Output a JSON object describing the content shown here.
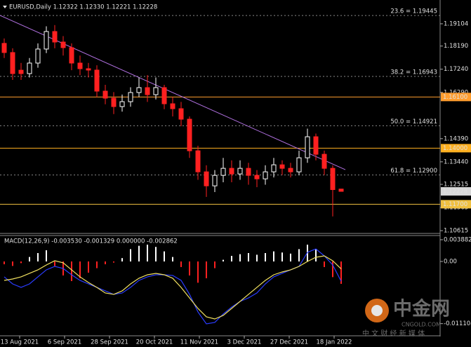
{
  "chart_data": {
    "type": "candlestick",
    "title": "EURUSD,Daily  1.12322 1.12330 1.12221 1.12228",
    "up_color": "#ffffff",
    "down_color": "#ff2020",
    "open": [
      1.183,
      1.17924,
      1.172,
      1.1706,
      1.17492,
      1.18068,
      1.18787,
      1.18355,
      1.18125,
      1.17492,
      1.17261,
      1.17204,
      1.1634,
      1.16052,
      1.15707,
      1.15908,
      1.16283,
      1.16484,
      1.16196,
      1.16484,
      1.15822,
      1.1562,
      1.15189,
      1.13893,
      1.13029,
      1.12454,
      1.12885,
      1.13173,
      1.12943,
      1.13173,
      1.12885,
      1.12741,
      1.13029,
      1.13317,
      1.13173,
      1.13029,
      1.13605,
      1.14469,
      1.13749,
      1.13173,
      1.12322
    ],
    "high": [
      1.185,
      1.181,
      1.175,
      1.177,
      1.183,
      1.19,
      1.1905,
      1.186,
      1.183,
      1.178,
      1.175,
      1.174,
      1.166,
      1.163,
      1.162,
      1.165,
      1.169,
      1.17,
      1.169,
      1.166,
      1.161,
      1.159,
      1.153,
      1.141,
      1.133,
      1.131,
      1.136,
      1.135,
      1.135,
      1.134,
      1.131,
      1.133,
      1.136,
      1.135,
      1.134,
      1.139,
      1.148,
      1.146,
      1.139,
      1.133,
      1.1233
    ],
    "low": [
      1.177,
      1.168,
      1.168,
      1.169,
      1.173,
      1.179,
      1.181,
      1.178,
      1.172,
      1.17,
      1.169,
      1.161,
      1.158,
      1.154,
      1.155,
      1.157,
      1.161,
      1.159,
      1.16,
      1.156,
      1.153,
      1.149,
      1.136,
      1.127,
      1.12,
      1.122,
      1.126,
      1.126,
      1.127,
      1.125,
      1.124,
      1.125,
      1.128,
      1.129,
      1.128,
      1.129,
      1.134,
      1.135,
      1.129,
      1.112,
      1.12221
    ],
    "close": [
      1.17924,
      1.1706,
      1.1706,
      1.17492,
      1.18068,
      1.18787,
      1.18355,
      1.18125,
      1.17492,
      1.17261,
      1.17204,
      1.1634,
      1.16052,
      1.15707,
      1.15908,
      1.16283,
      1.16484,
      1.16196,
      1.16484,
      1.15822,
      1.1562,
      1.15189,
      1.13893,
      1.13029,
      1.12454,
      1.12885,
      1.13173,
      1.12943,
      1.13173,
      1.12885,
      1.12741,
      1.13029,
      1.13317,
      1.13173,
      1.13029,
      1.13605,
      1.14469,
      1.13749,
      1.13173,
      1.123,
      1.12228
    ],
    "ylim": [
      1.1053,
      1.2008
    ],
    "yticks": [
      1.19104,
      {
        "value": 1.1819,
        "label": "1.18190"
      },
      {
        "value": 1.1724,
        "label": "1.17240"
      },
      {
        "value": 1.1629,
        "label": "1.16290"
      },
      {
        "value": 1.1439,
        "label": "1.14390"
      },
      {
        "value": 1.1344,
        "label": "1.13440"
      },
      1.12515,
      1.11565,
      1.10615
    ],
    "x_labels": [
      "13 Aug 2021",
      "6 Sep 2021",
      "28 Sep 2021",
      "20 Oct 2021",
      "11 Nov 2021",
      "3 Dec 2021",
      "27 Dec 2021",
      "18 Jan 2022"
    ],
    "fib_levels": [
      {
        "value": 1.19445,
        "label": "23.6 = 1.19445"
      },
      {
        "value": 1.16943,
        "label": "38.2 = 1.16943"
      },
      {
        "value": 1.14921,
        "label": "50.0 = 1.14921"
      },
      {
        "value": 1.129,
        "label": "61.8 = 1.12900"
      }
    ],
    "levels": [
      {
        "value": 1.161,
        "label": "1.16100",
        "color": "#ff9d2e"
      },
      {
        "value": 1.14,
        "label": "1.14000",
        "color": "#ffb020"
      },
      {
        "value": 1.117,
        "label": "1.11700",
        "color": "#f0c040"
      }
    ],
    "current_price": {
      "value": 1.12228,
      "label": "1.12228"
    },
    "trendline": {
      "from": 1.19449,
      "to": 1.13116,
      "color": "#b070e0"
    },
    "macd": {
      "title": "MACD(12,26,9) -0.003530 -0.001329 0.000000 -0.002862",
      "ylim": [
        -0.01315,
        0.00463
      ],
      "yticks": [
        0.003882,
        {
          "value": 0,
          "label": "0.00"
        },
        -0.011104
      ],
      "histogram": [
        -0.0005,
        -0.0008,
        -0.0003,
        0.0008,
        0.0015,
        0.002,
        -0.0008,
        -0.0025,
        -0.0035,
        -0.003,
        -0.002,
        -0.0012,
        -0.0005,
        -0.0002,
        0.0006,
        0.0022,
        0.0028,
        0.003,
        0.0026,
        0.0018,
        0.0008,
        -0.001,
        -0.0025,
        -0.0038,
        -0.003,
        -0.0012,
        0.0003,
        0.001,
        0.0013,
        0.0015,
        0.0012,
        0.0015,
        0.0018,
        0.0016,
        0.0014,
        0.0022,
        0.003,
        0.0022,
        -0.001,
        -0.0028,
        -0.004
      ],
      "main": {
        "color": "#2a3cff",
        "values": [
          -0.00275,
          -0.00401,
          -0.00463,
          -0.00401,
          -0.00275,
          -0.0015,
          -0.00088,
          -0.00125,
          -0.00238,
          -0.00338,
          -0.00401,
          -0.00463,
          -0.00526,
          -0.00588,
          -0.00563,
          -0.00463,
          -0.00338,
          -0.00275,
          -0.00238,
          -0.00238,
          -0.0025,
          -0.00338,
          -0.00588,
          -0.00901,
          -0.01114,
          -0.01089,
          -0.00939,
          -0.00814,
          -0.00714,
          -0.00651,
          -0.00563,
          -0.00401,
          -0.00275,
          -0.00213,
          -0.0015,
          -0.00088,
          0.00163,
          0.00225,
          0.001,
          -0.00063,
          -0.00353
        ]
      },
      "signal": {
        "color": "#f0e060",
        "values": [
          -0.00338,
          -0.00313,
          -0.00275,
          -0.00213,
          -0.0015,
          -0.00063,
          0.00013,
          -0.00025,
          -0.0015,
          -0.00275,
          -0.00376,
          -0.00463,
          -0.00563,
          -0.00588,
          -0.00526,
          -0.00401,
          -0.003,
          -0.00238,
          -0.00213,
          -0.00238,
          -0.003,
          -0.00463,
          -0.00651,
          -0.00839,
          -0.00989,
          -0.01027,
          -0.00964,
          -0.00839,
          -0.00714,
          -0.00588,
          -0.00463,
          -0.00338,
          -0.00238,
          -0.00188,
          -0.0015,
          -0.00088,
          0,
          0.00075,
          0.001,
          0.00013,
          -0.00133
        ]
      }
    },
    "watermark": {
      "logo": "中金网",
      "site": "CNGOLD.COM",
      "slogan": "中 文 财 经 新 媒 体"
    }
  }
}
